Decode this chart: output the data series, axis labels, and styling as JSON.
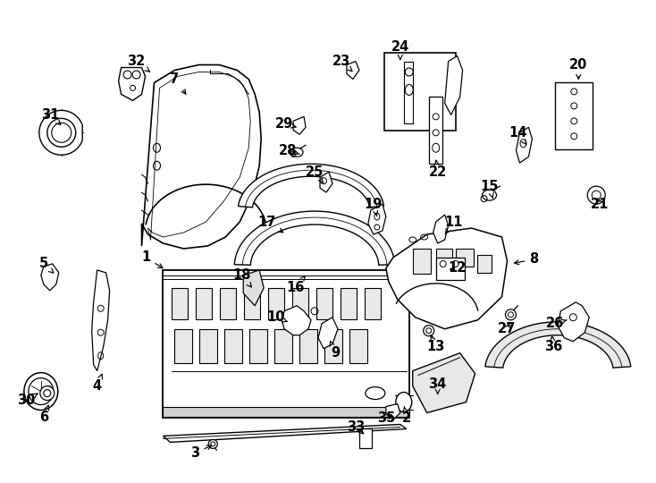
{
  "bg_color": "#ffffff",
  "fig_width": 7.34,
  "fig_height": 5.4,
  "dpi": 100,
  "labels": [
    [
      1,
      163,
      288,
      185,
      302
    ],
    [
      2,
      455,
      468,
      452,
      452
    ],
    [
      3,
      218,
      507,
      240,
      497
    ],
    [
      4,
      108,
      432,
      115,
      415
    ],
    [
      5,
      48,
      295,
      62,
      308
    ],
    [
      6,
      48,
      467,
      55,
      450
    ],
    [
      7,
      195,
      88,
      210,
      108
    ],
    [
      8,
      598,
      290,
      572,
      295
    ],
    [
      9,
      375,
      395,
      368,
      378
    ],
    [
      10,
      308,
      355,
      322,
      360
    ],
    [
      11,
      508,
      248,
      498,
      262
    ],
    [
      12,
      512,
      300,
      500,
      302
    ],
    [
      13,
      488,
      388,
      482,
      375
    ],
    [
      14,
      580,
      148,
      590,
      162
    ],
    [
      15,
      548,
      208,
      552,
      222
    ],
    [
      16,
      330,
      322,
      342,
      308
    ],
    [
      17,
      298,
      248,
      320,
      262
    ],
    [
      18,
      270,
      308,
      282,
      322
    ],
    [
      19,
      418,
      228,
      422,
      242
    ],
    [
      20,
      648,
      72,
      648,
      92
    ],
    [
      21,
      672,
      228,
      668,
      218
    ],
    [
      22,
      490,
      192,
      488,
      178
    ],
    [
      23,
      382,
      68,
      395,
      80
    ],
    [
      24,
      448,
      52,
      448,
      70
    ],
    [
      25,
      352,
      192,
      362,
      205
    ],
    [
      26,
      622,
      362,
      635,
      358
    ],
    [
      27,
      568,
      368,
      572,
      358
    ],
    [
      28,
      322,
      168,
      335,
      172
    ],
    [
      29,
      318,
      138,
      332,
      142
    ],
    [
      30,
      28,
      448,
      42,
      440
    ],
    [
      31,
      55,
      128,
      68,
      140
    ],
    [
      32,
      152,
      68,
      170,
      82
    ],
    [
      33,
      398,
      478,
      410,
      488
    ],
    [
      34,
      490,
      430,
      490,
      442
    ],
    [
      35,
      432,
      468,
      442,
      462
    ],
    [
      36,
      620,
      388,
      618,
      375
    ]
  ]
}
